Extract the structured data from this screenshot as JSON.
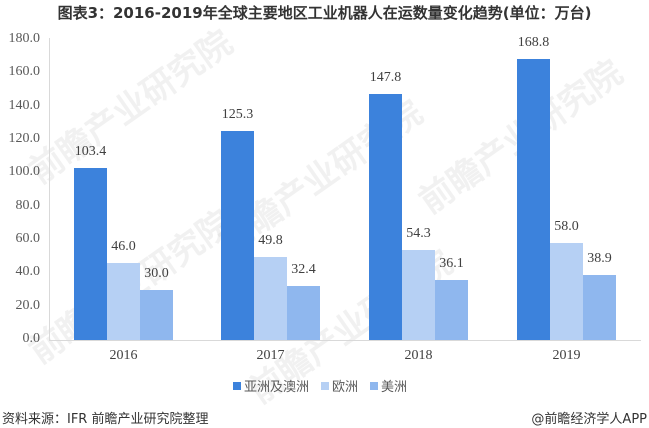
{
  "title": "图表3：2016-2019年全球主要地区工业机器人在运数量变化趋势(单位：万台)",
  "footer": {
    "source": "资料来源：IFR 前瞻产业研究院整理",
    "credit": "@前瞻经济学人APP"
  },
  "watermark": "前瞻产业研究院",
  "colors": {
    "asia": "#3c82dc",
    "europe": "#b6d0f4",
    "america": "#8fb7ee"
  },
  "chart_data": {
    "type": "bar",
    "title": "图表3：2016-2019年全球主要地区工业机器人在运数量变化趋势(单位：万台)",
    "xlabel": "",
    "ylabel": "万台",
    "ylim": [
      0,
      180
    ],
    "yticks": [
      "0.0",
      "20.0",
      "40.0",
      "60.0",
      "80.0",
      "100.0",
      "120.0",
      "140.0",
      "160.0",
      "180.0"
    ],
    "grid": false,
    "legend_position": "bottom",
    "categories": [
      "2016",
      "2017",
      "2018",
      "2019"
    ],
    "series": [
      {
        "name": "亚洲及澳洲",
        "values": [
          103.4,
          125.3,
          147.8,
          168.8
        ],
        "labels": [
          "103.4",
          "125.3",
          "147.8",
          "168.8"
        ]
      },
      {
        "name": "欧洲",
        "values": [
          46.0,
          49.8,
          54.3,
          58.0
        ],
        "labels": [
          "46.0",
          "49.8",
          "54.3",
          "58.0"
        ]
      },
      {
        "name": "美洲",
        "values": [
          30.0,
          32.4,
          36.1,
          38.9
        ],
        "labels": [
          "30.0",
          "32.4",
          "36.1",
          "38.9"
        ]
      }
    ]
  }
}
